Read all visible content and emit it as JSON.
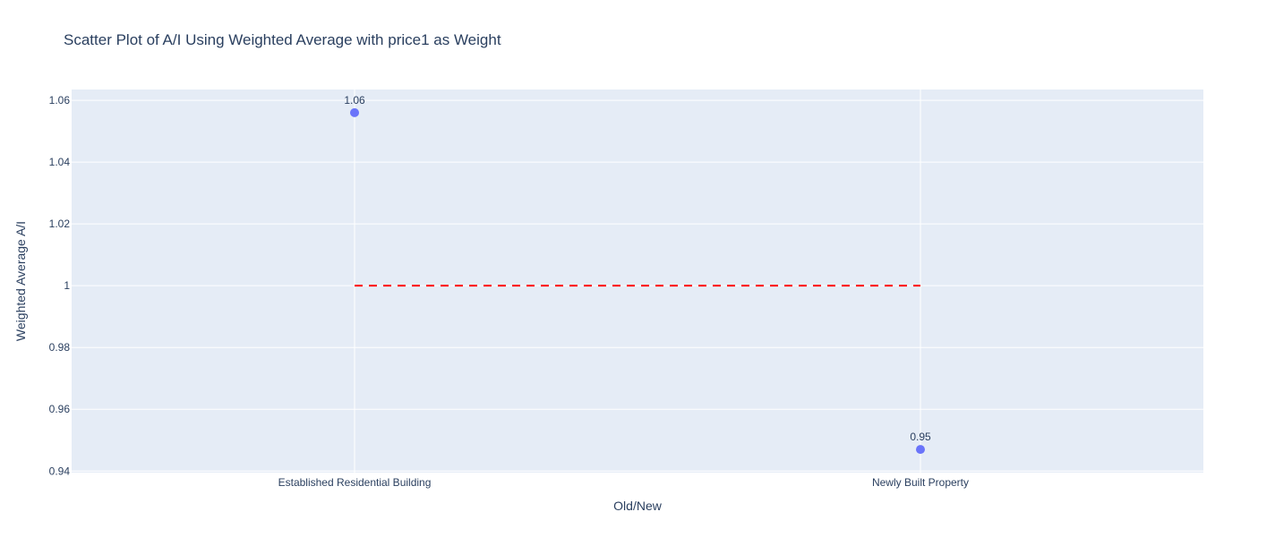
{
  "chart_data": {
    "type": "scatter",
    "title": "Scatter Plot of A/I Using Weighted Average with price1 as Weight",
    "xlabel": "Old/New",
    "ylabel": "Weighted Average A/I",
    "categories": [
      "Established Residential Building",
      "Newly Built Property"
    ],
    "series": [
      {
        "values": [
          1.056,
          0.947
        ],
        "data_labels": [
          "1.06",
          "0.95"
        ],
        "color": "#636efa"
      }
    ],
    "reference_line": {
      "y": 1,
      "from_category": "Established Residential Building",
      "to_category": "Newly Built Property",
      "color": "#ff0000",
      "style": "dashed"
    },
    "ylim": [
      0.9395,
      1.0635
    ],
    "y_ticks": [
      0.94,
      0.96,
      0.98,
      1,
      1.02,
      1.04,
      1.06
    ],
    "y_tick_labels": [
      "0.94",
      "0.96",
      "0.98",
      "1",
      "1.02",
      "1.04",
      "1.06"
    ],
    "grid": true,
    "plot_background": "#e5ecf6",
    "gridline_color": "#ffffff",
    "text_color": "#2a3f5f"
  }
}
